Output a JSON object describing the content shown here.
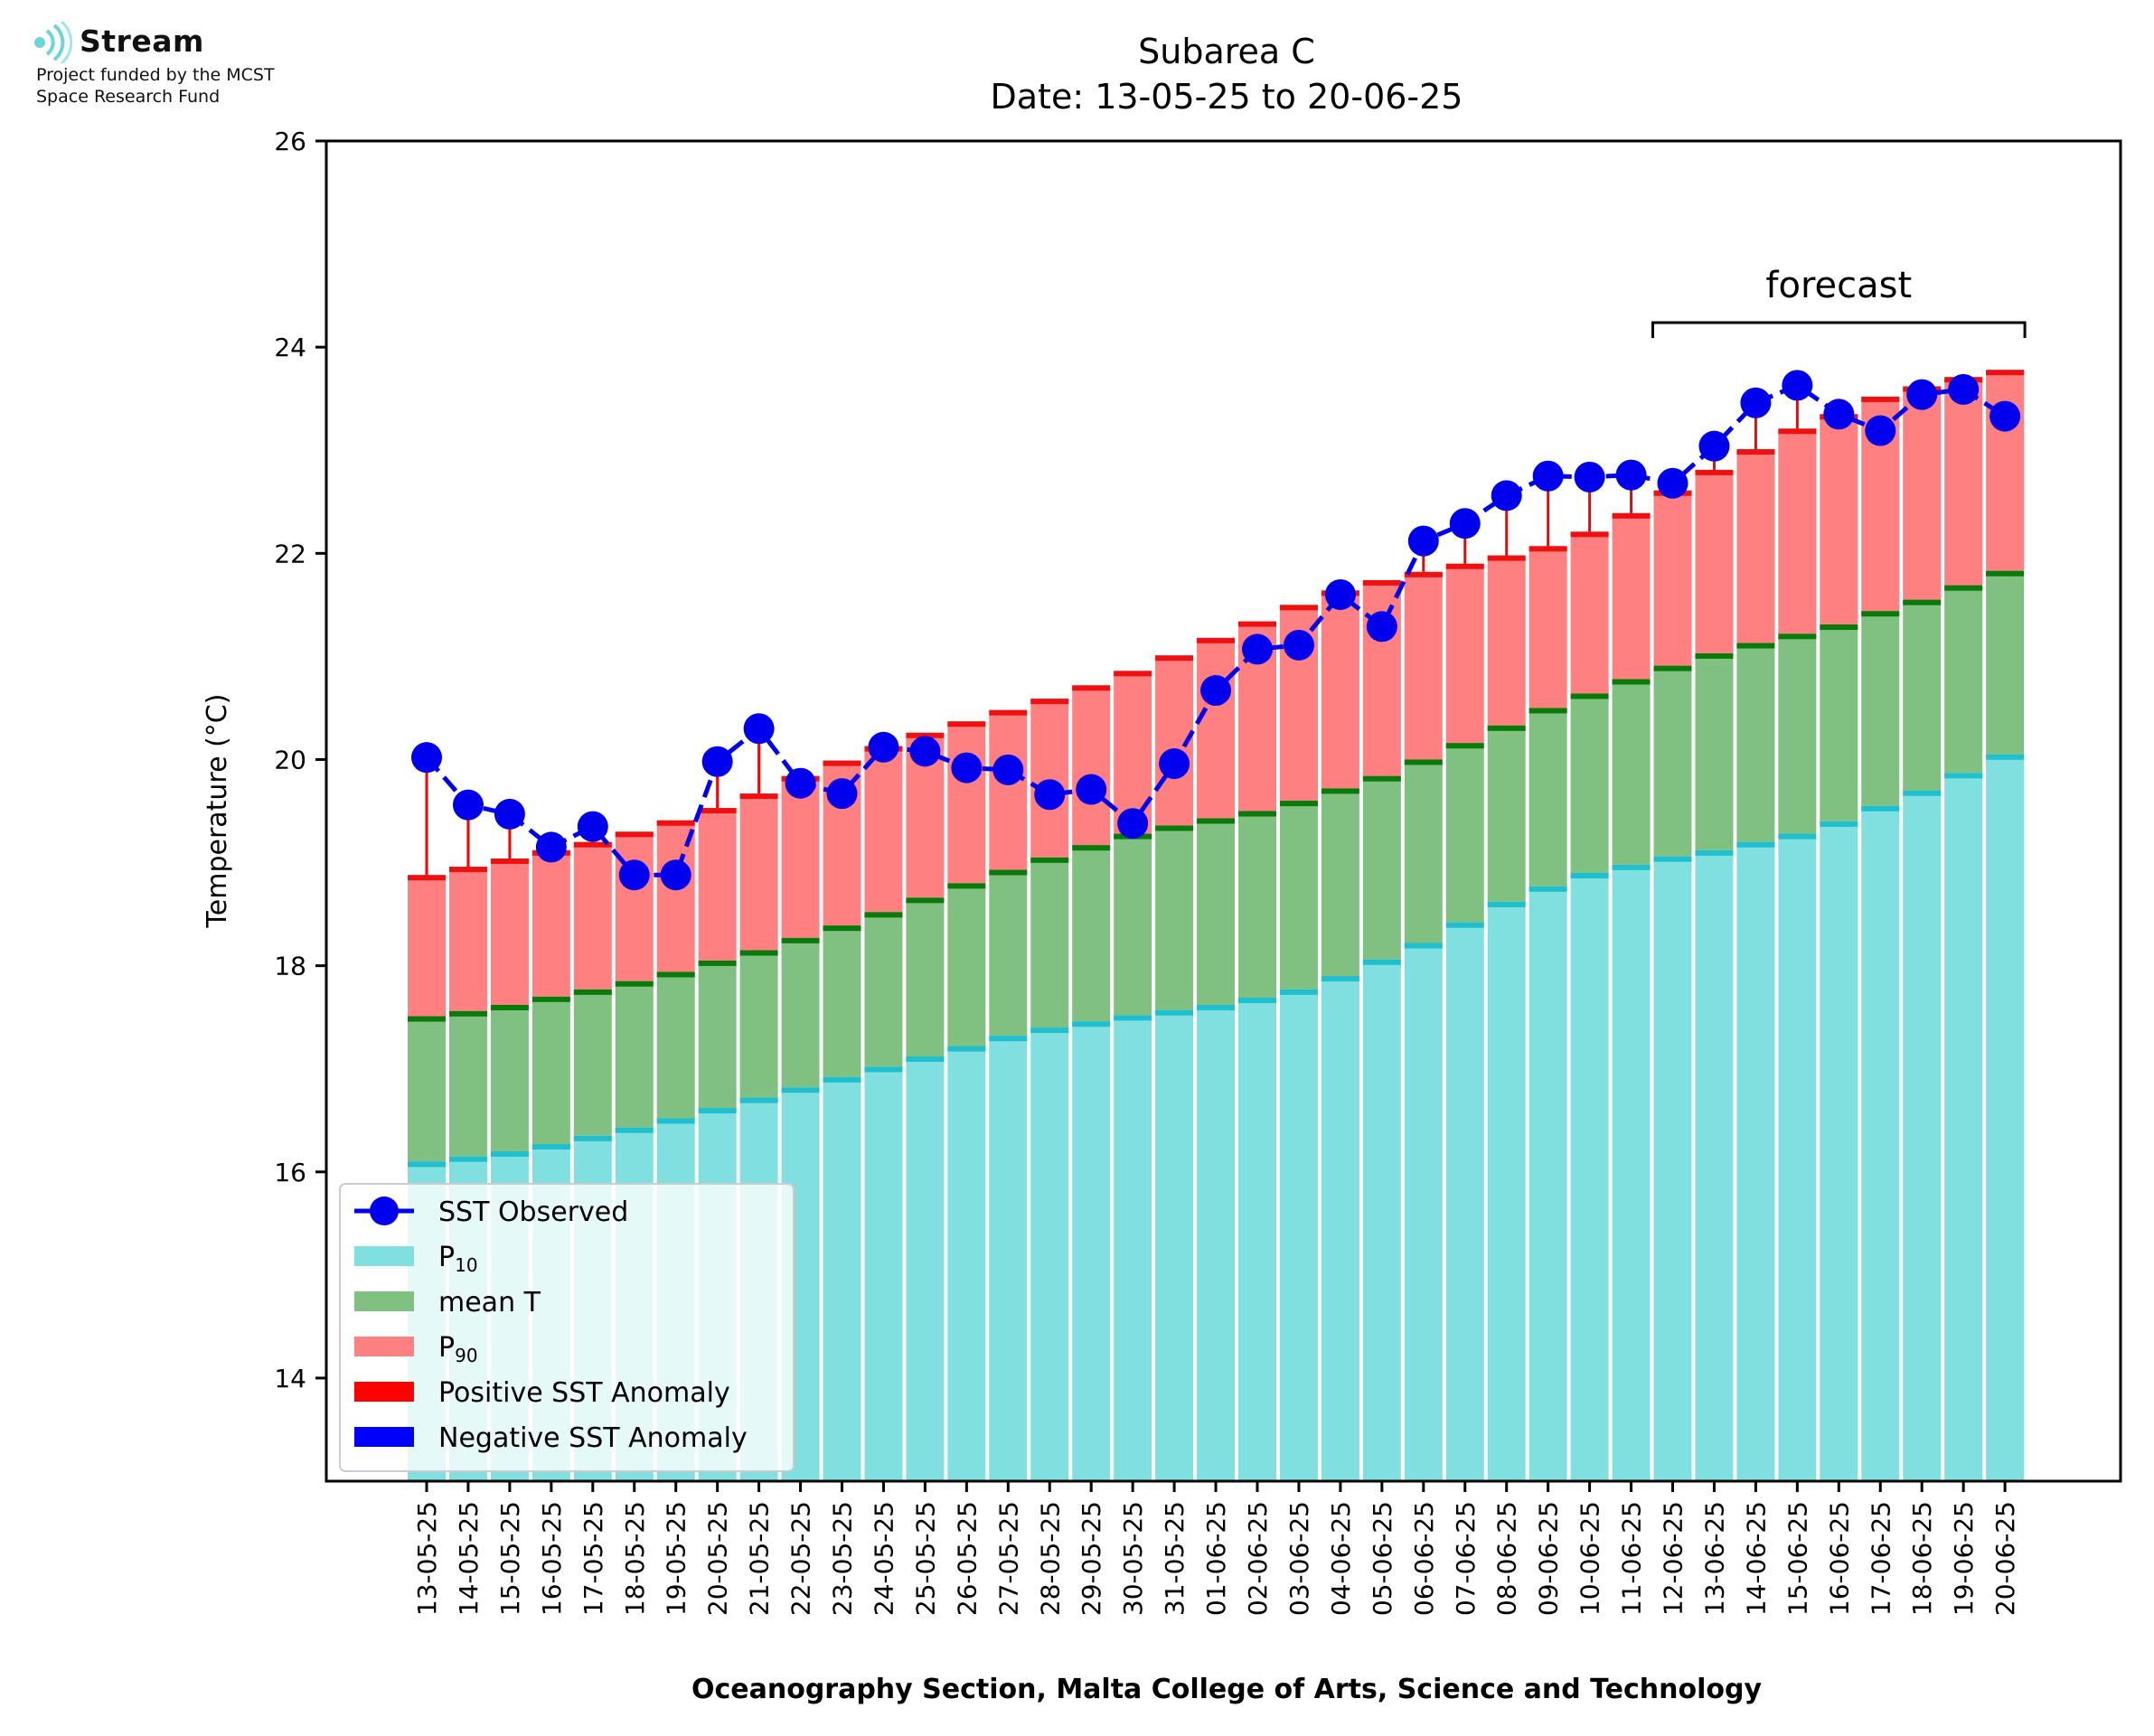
{
  "logo": {
    "brand": "Stream",
    "line1": "Project funded by the MCST",
    "line2": "Space Research Fund",
    "icon": "wave-signal-icon"
  },
  "colors": {
    "p10": "#80dfdf",
    "p10_cap": "#1fbfcf",
    "mean": "#80c080",
    "mean_cap": "#0a7a0a",
    "p90": "#ff8080",
    "p90_cap": "#ee1111",
    "observed": "#0000ee",
    "anomaly_pos": "#ff0000",
    "anomaly_neg": "#0000ff"
  },
  "chart_data": {
    "type": "bar",
    "title": "Subarea C",
    "subtitle": "Date: 13-05-25 to 20-06-25",
    "xlabel": "Oceanography Section, Malta College of Arts, Science and Technology",
    "ylabel": "Temperature (°C)",
    "ylim": [
      13,
      26
    ],
    "yticks": [
      "14",
      "16",
      "18",
      "20",
      "22",
      "24",
      "26"
    ],
    "grid": false,
    "legend_position": "lower-left",
    "categories": [
      "13-05-25",
      "14-05-25",
      "15-05-25",
      "16-05-25",
      "17-05-25",
      "18-05-25",
      "19-05-25",
      "20-05-25",
      "21-05-25",
      "22-05-25",
      "23-05-25",
      "24-05-25",
      "25-05-25",
      "26-05-25",
      "27-05-25",
      "28-05-25",
      "29-05-25",
      "30-05-25",
      "31-05-25",
      "01-06-25",
      "02-06-25",
      "03-06-25",
      "04-06-25",
      "05-06-25",
      "06-06-25",
      "07-06-25",
      "08-06-25",
      "09-06-25",
      "10-06-25",
      "11-06-25",
      "12-06-25",
      "13-06-25",
      "14-06-25",
      "15-06-25",
      "16-06-25",
      "17-06-25",
      "18-06-25",
      "19-06-25",
      "20-06-25"
    ],
    "series": [
      {
        "name": "P10",
        "values": [
          16.1,
          16.15,
          16.2,
          16.27,
          16.35,
          16.43,
          16.52,
          16.62,
          16.72,
          16.82,
          16.92,
          17.02,
          17.12,
          17.22,
          17.32,
          17.4,
          17.46,
          17.52,
          17.57,
          17.62,
          17.69,
          17.77,
          17.9,
          18.06,
          18.22,
          18.42,
          18.62,
          18.77,
          18.9,
          18.98,
          19.06,
          19.12,
          19.2,
          19.28,
          19.4,
          19.55,
          19.7,
          19.87,
          20.05
        ]
      },
      {
        "name": "mean T",
        "values": [
          17.51,
          17.56,
          17.62,
          17.7,
          17.77,
          17.85,
          17.94,
          18.05,
          18.15,
          18.27,
          18.39,
          18.52,
          18.66,
          18.8,
          18.93,
          19.05,
          19.17,
          19.28,
          19.36,
          19.43,
          19.5,
          19.6,
          19.72,
          19.84,
          20.0,
          20.16,
          20.33,
          20.5,
          20.64,
          20.78,
          20.91,
          21.03,
          21.13,
          21.22,
          21.31,
          21.44,
          21.55,
          21.69,
          21.83
        ]
      },
      {
        "name": "P90",
        "values": [
          18.88,
          18.96,
          19.04,
          19.12,
          19.2,
          19.3,
          19.41,
          19.53,
          19.67,
          19.84,
          19.99,
          20.13,
          20.26,
          20.37,
          20.48,
          20.59,
          20.72,
          20.86,
          21.01,
          21.18,
          21.34,
          21.5,
          21.64,
          21.74,
          21.82,
          21.9,
          21.98,
          22.07,
          22.21,
          22.39,
          22.61,
          22.81,
          23.01,
          23.21,
          23.35,
          23.52,
          23.62,
          23.71,
          23.78
        ]
      },
      {
        "name": "SST Observed",
        "values": [
          20.02,
          19.56,
          19.47,
          19.15,
          19.35,
          18.88,
          18.88,
          19.98,
          20.3,
          19.77,
          19.67,
          20.12,
          20.08,
          19.92,
          19.9,
          19.66,
          19.71,
          19.38,
          19.96,
          20.67,
          21.07,
          21.11,
          21.6,
          21.29,
          22.12,
          22.29,
          22.56,
          22.75,
          22.74,
          22.76,
          22.68,
          23.04,
          23.46,
          23.63,
          23.35,
          23.19,
          23.54,
          23.59,
          23.33
        ]
      }
    ],
    "forecast_label": "forecast",
    "forecast_range": [
      "12-06-25",
      "20-06-25"
    ],
    "legend": [
      {
        "label": "SST Observed",
        "kind": "marker-line",
        "color": "#0000ee"
      },
      {
        "label": "P",
        "sub": "10",
        "kind": "patch",
        "color": "#80dfdf"
      },
      {
        "label": "mean T",
        "kind": "patch",
        "color": "#80c080"
      },
      {
        "label": "P",
        "sub": "90",
        "kind": "patch",
        "color": "#ff8080"
      },
      {
        "label": "Positive SST Anomaly",
        "kind": "patch",
        "color": "#ff0000"
      },
      {
        "label": "Negative SST Anomaly",
        "kind": "patch",
        "color": "#0000ff"
      }
    ]
  }
}
